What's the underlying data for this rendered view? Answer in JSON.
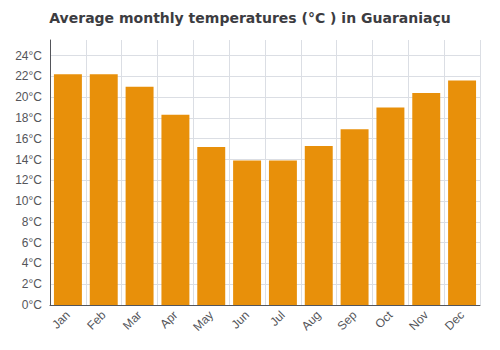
{
  "chart_data": {
    "type": "bar",
    "title": "Average monthly temperatures (°C ) in Guaraniaçu",
    "categories": [
      "Jan",
      "Feb",
      "Mar",
      "Apr",
      "May",
      "Jun",
      "Jul",
      "Aug",
      "Sep",
      "Oct",
      "Nov",
      "Dec"
    ],
    "values": [
      22.2,
      22.2,
      21.0,
      18.3,
      15.2,
      13.9,
      13.9,
      15.3,
      16.9,
      19.0,
      20.4,
      21.6
    ],
    "color": "#E8900A",
    "ylim": [
      0,
      25.5
    ],
    "yticks": [
      {
        "value": 0,
        "label": "0°C"
      },
      {
        "value": 2,
        "label": "2°C"
      },
      {
        "value": 4,
        "label": "4°C"
      },
      {
        "value": 6,
        "label": "6°C"
      },
      {
        "value": 8,
        "label": "8°C"
      },
      {
        "value": 10,
        "label": "10°C"
      },
      {
        "value": 12,
        "label": "12°C"
      },
      {
        "value": 14,
        "label": "14°C"
      },
      {
        "value": 16,
        "label": "16°C"
      },
      {
        "value": 18,
        "label": "18°C"
      },
      {
        "value": 20,
        "label": "20°C"
      },
      {
        "value": 22,
        "label": "22°C"
      },
      {
        "value": 24,
        "label": "24°C"
      }
    ],
    "grid": true
  }
}
